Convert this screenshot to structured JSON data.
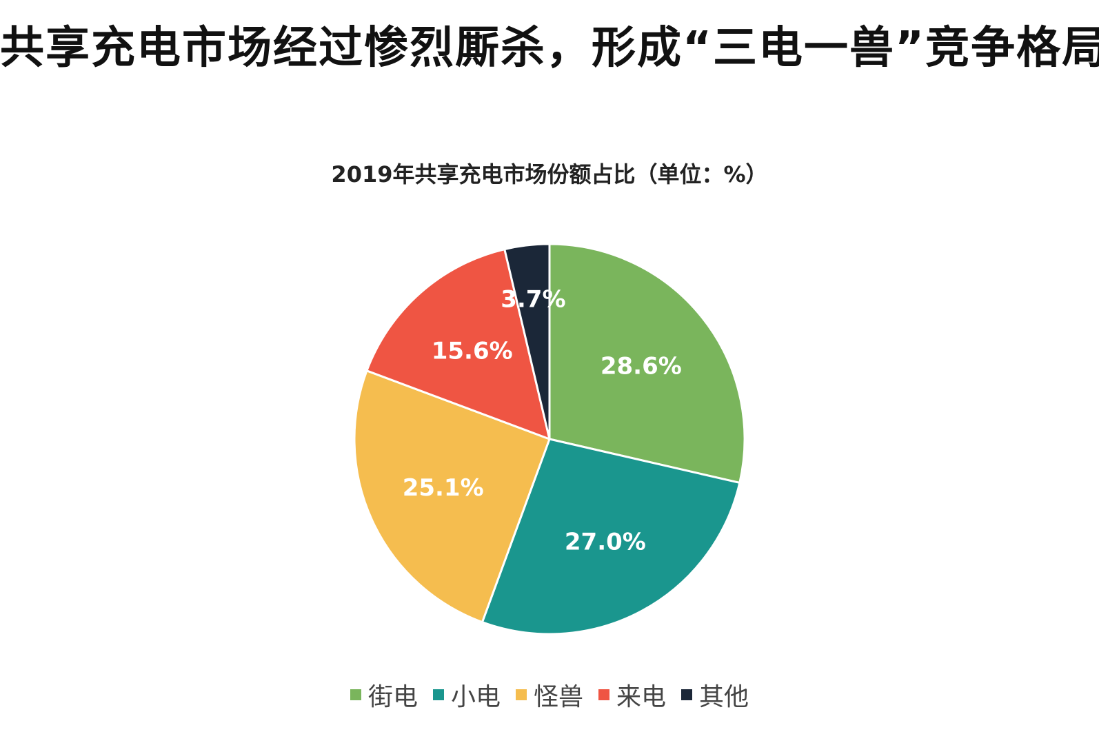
{
  "page": {
    "headline": "共享充电市场经过惨烈厮杀，形成“三电一兽”竞争格局"
  },
  "chart_data": {
    "type": "pie",
    "title": "2019年共享充电市场份额占比（单位：%）",
    "unit": "%",
    "legend_position": "bottom",
    "start_angle": "12 o'clock",
    "direction": "clockwise",
    "categories": [
      "街电",
      "小电",
      "怪兽",
      "来电",
      "其他"
    ],
    "values": [
      28.6,
      27.0,
      25.1,
      15.6,
      3.7
    ],
    "labels": [
      "28.6%",
      "27.0%",
      "25.1%",
      "15.6%",
      "3.7%"
    ],
    "colors": [
      "#7ab55c",
      "#1a968e",
      "#f5bd4f",
      "#ef5543",
      "#1b2738"
    ],
    "label_color": "#ffffff"
  }
}
